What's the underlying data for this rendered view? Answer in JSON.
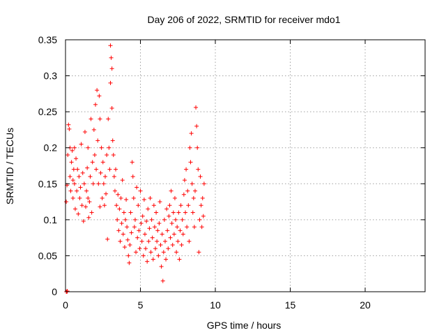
{
  "chart_data": {
    "type": "scatter",
    "title": "Day 206 of 2022, SRMTID for receiver mdo1",
    "xlabel": "GPS time / hours",
    "ylabel": "SRMTID / TECUs",
    "xlim": [
      0,
      24
    ],
    "ylim": [
      0,
      0.35
    ],
    "xticks": [
      0,
      5,
      10,
      15,
      20
    ],
    "xtick_labels": [
      "0",
      "5",
      "10",
      "15",
      "20"
    ],
    "yticks": [
      0,
      0.05,
      0.1,
      0.15,
      0.2,
      0.25,
      0.3,
      0.35
    ],
    "ytick_labels": [
      "0",
      "0.05",
      "0.1",
      "0.15",
      "0.2",
      "0.25",
      "0.3",
      "0.35"
    ],
    "grid": true,
    "legend": "none",
    "marker": "+",
    "color": "#ff0000",
    "series": [
      {
        "values": [
          [
            0.05,
            0.0
          ],
          [
            0.1,
            0.0
          ],
          [
            0.12,
            0.001
          ],
          [
            0.05,
            0.125
          ],
          [
            0.1,
            0.148
          ],
          [
            0.15,
            0.19
          ],
          [
            0.2,
            0.232
          ],
          [
            0.25,
            0.226
          ],
          [
            0.3,
            0.2
          ],
          [
            0.3,
            0.16
          ],
          [
            0.35,
            0.14
          ],
          [
            0.4,
            0.18
          ],
          [
            0.45,
            0.196
          ],
          [
            0.5,
            0.155
          ],
          [
            0.5,
            0.13
          ],
          [
            0.55,
            0.17
          ],
          [
            0.6,
            0.15
          ],
          [
            0.6,
            0.2
          ],
          [
            0.65,
            0.115
          ],
          [
            0.7,
            0.185
          ],
          [
            0.75,
            0.14
          ],
          [
            0.8,
            0.17
          ],
          [
            0.85,
            0.108
          ],
          [
            0.9,
            0.16
          ],
          [
            0.95,
            0.13
          ],
          [
            1.0,
            0.145
          ],
          [
            1.05,
            0.205
          ],
          [
            1.1,
            0.12
          ],
          [
            1.15,
            0.165
          ],
          [
            1.2,
            0.098
          ],
          [
            1.25,
            0.15
          ],
          [
            1.3,
            0.222
          ],
          [
            1.35,
            0.118
          ],
          [
            1.4,
            0.14
          ],
          [
            1.45,
            0.172
          ],
          [
            1.5,
            0.13
          ],
          [
            1.5,
            0.2
          ],
          [
            1.55,
            0.103
          ],
          [
            1.6,
            0.125
          ],
          [
            1.65,
            0.16
          ],
          [
            1.7,
            0.24
          ],
          [
            1.75,
            0.11
          ],
          [
            1.8,
            0.18
          ],
          [
            1.85,
            0.15
          ],
          [
            1.9,
            0.225
          ],
          [
            1.95,
            0.19
          ],
          [
            2.0,
            0.26
          ],
          [
            2.05,
            0.17
          ],
          [
            2.1,
            0.28
          ],
          [
            2.15,
            0.21
          ],
          [
            2.2,
            0.15
          ],
          [
            2.25,
            0.272
          ],
          [
            2.3,
            0.118
          ],
          [
            2.3,
            0.24
          ],
          [
            2.35,
            0.165
          ],
          [
            2.4,
            0.2
          ],
          [
            2.45,
            0.13
          ],
          [
            2.5,
            0.18
          ],
          [
            2.55,
            0.15
          ],
          [
            2.6,
            0.12
          ],
          [
            2.65,
            0.16
          ],
          [
            2.7,
            0.136
          ],
          [
            2.75,
            0.19
          ],
          [
            2.8,
            0.073
          ],
          [
            2.85,
            0.24
          ],
          [
            2.9,
            0.2
          ],
          [
            2.95,
            0.17
          ],
          [
            3.0,
            0.29
          ],
          [
            3.0,
            0.342
          ],
          [
            3.05,
            0.325
          ],
          [
            3.1,
            0.255
          ],
          [
            3.1,
            0.31
          ],
          [
            3.15,
            0.21
          ],
          [
            3.2,
            0.19
          ],
          [
            3.25,
            0.16
          ],
          [
            3.3,
            0.14
          ],
          [
            3.35,
            0.17
          ],
          [
            3.4,
            0.12
          ],
          [
            3.45,
            0.1
          ],
          [
            3.5,
            0.135
          ],
          [
            3.55,
            0.085
          ],
          [
            3.6,
            0.115
          ],
          [
            3.65,
            0.07
          ],
          [
            3.7,
            0.13
          ],
          [
            3.75,
            0.095
          ],
          [
            3.8,
            0.155
          ],
          [
            3.85,
            0.08
          ],
          [
            3.9,
            0.11
          ],
          [
            3.95,
            0.062
          ],
          [
            4.0,
            0.1
          ],
          [
            4.05,
            0.128
          ],
          [
            4.1,
            0.09
          ],
          [
            4.15,
            0.072
          ],
          [
            4.2,
            0.05
          ],
          [
            4.25,
            0.04
          ],
          [
            4.3,
            0.065
          ],
          [
            4.35,
            0.11
          ],
          [
            4.4,
            0.082
          ],
          [
            4.45,
            0.18
          ],
          [
            4.5,
            0.16
          ],
          [
            4.55,
            0.13
          ],
          [
            4.6,
            0.09
          ],
          [
            4.65,
            0.1
          ],
          [
            4.7,
            0.055
          ],
          [
            4.75,
            0.145
          ],
          [
            4.8,
            0.075
          ],
          [
            4.85,
            0.12
          ],
          [
            4.9,
            0.085
          ],
          [
            4.95,
            0.06
          ],
          [
            5.0,
            0.14
          ],
          [
            5.05,
            0.095
          ],
          [
            5.1,
            0.07
          ],
          [
            5.15,
            0.105
          ],
          [
            5.2,
            0.05
          ],
          [
            5.25,
            0.128
          ],
          [
            5.3,
            0.08
          ],
          [
            5.35,
            0.06
          ],
          [
            5.4,
            0.098
          ],
          [
            5.45,
            0.042
          ],
          [
            5.5,
            0.115
          ],
          [
            5.55,
            0.07
          ],
          [
            5.6,
            0.088
          ],
          [
            5.65,
            0.13
          ],
          [
            5.7,
            0.055
          ],
          [
            5.75,
            0.1
          ],
          [
            5.8,
            0.075
          ],
          [
            5.85,
            0.045
          ],
          [
            5.9,
            0.12
          ],
          [
            5.95,
            0.09
          ],
          [
            6.0,
            0.06
          ],
          [
            6.05,
            0.11
          ],
          [
            6.1,
            0.07
          ],
          [
            6.15,
            0.085
          ],
          [
            6.2,
            0.05
          ],
          [
            6.25,
            0.095
          ],
          [
            6.3,
            0.125
          ],
          [
            6.35,
            0.065
          ],
          [
            6.4,
            0.035
          ],
          [
            6.45,
            0.08
          ],
          [
            6.5,
            0.015
          ],
          [
            6.55,
            0.055
          ],
          [
            6.6,
            0.1
          ],
          [
            6.65,
            0.07
          ],
          [
            6.7,
            0.045
          ],
          [
            6.75,
            0.115
          ],
          [
            6.8,
            0.085
          ],
          [
            6.85,
            0.06
          ],
          [
            6.9,
            0.105
          ],
          [
            6.95,
            0.12
          ],
          [
            7.0,
            0.075
          ],
          [
            7.05,
            0.14
          ],
          [
            7.1,
            0.095
          ],
          [
            7.15,
            0.065
          ],
          [
            7.2,
            0.11
          ],
          [
            7.25,
            0.08
          ],
          [
            7.3,
            0.13
          ],
          [
            7.35,
            0.1
          ],
          [
            7.4,
            0.055
          ],
          [
            7.45,
            0.09
          ],
          [
            7.5,
            0.07
          ],
          [
            7.55,
            0.11
          ],
          [
            7.6,
            0.045
          ],
          [
            7.65,
            0.085
          ],
          [
            7.7,
            0.12
          ],
          [
            7.75,
            0.065
          ],
          [
            7.8,
            0.1
          ],
          [
            7.85,
            0.08
          ],
          [
            7.9,
            0.135
          ],
          [
            7.95,
            0.155
          ],
          [
            8.0,
            0.11
          ],
          [
            8.05,
            0.17
          ],
          [
            8.1,
            0.09
          ],
          [
            8.15,
            0.14
          ],
          [
            8.2,
            0.12
          ],
          [
            8.25,
            0.07
          ],
          [
            8.3,
            0.2
          ],
          [
            8.35,
            0.18
          ],
          [
            8.4,
            0.22
          ],
          [
            8.45,
            0.15
          ],
          [
            8.5,
            0.11
          ],
          [
            8.55,
            0.13
          ],
          [
            8.6,
            0.09
          ],
          [
            8.65,
            0.14
          ],
          [
            8.7,
            0.256
          ],
          [
            8.75,
            0.23
          ],
          [
            8.8,
            0.2
          ],
          [
            8.85,
            0.17
          ],
          [
            8.9,
            0.055
          ],
          [
            8.95,
            0.1
          ],
          [
            9.0,
            0.16
          ],
          [
            9.05,
            0.12
          ],
          [
            9.1,
            0.09
          ],
          [
            9.15,
            0.13
          ],
          [
            9.2,
            0.105
          ],
          [
            9.25,
            0.15
          ]
        ]
      }
    ]
  }
}
